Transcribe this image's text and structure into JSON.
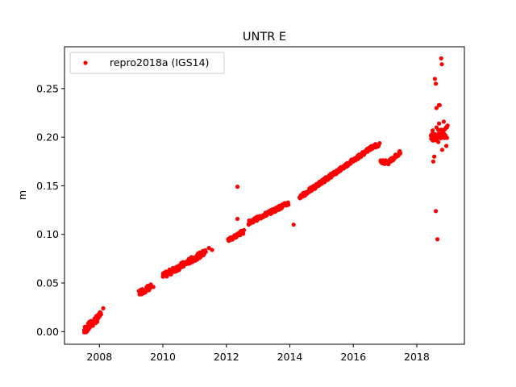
{
  "chart_data": {
    "type": "scatter",
    "title": "UNTR E",
    "xlabel": "",
    "ylabel": "m",
    "xlim": [
      2006.9,
      2019.5
    ],
    "ylim": [
      -0.013,
      0.293
    ],
    "xticks": [
      2008,
      2010,
      2012,
      2014,
      2016,
      2018
    ],
    "yticks": [
      0.0,
      0.05,
      0.1,
      0.15,
      0.2,
      0.25
    ],
    "ytick_labels": [
      "0.00",
      "0.05",
      "0.10",
      "0.15",
      "0.20",
      "0.25"
    ],
    "grid": false,
    "legend_position": "upper-left",
    "colors": {
      "series": "#ff0000",
      "axes": "#000000",
      "background": "#ffffff"
    },
    "series": [
      {
        "name": "repro2018a (IGS14)",
        "color": "#ff0000",
        "segments": [
          {
            "x": [
              2007.52,
              2007.92
            ],
            "y": [
              0.001,
              0.013
            ],
            "n": 40,
            "noise": 0.004
          },
          {
            "x": [
              2007.93,
              2008.05
            ],
            "y": [
              0.013,
              0.018
            ],
            "n": 10,
            "noise": 0.003
          },
          {
            "x": [
              2009.25,
              2009.62
            ],
            "y": [
              0.04,
              0.046
            ],
            "n": 30,
            "noise": 0.003
          },
          {
            "x": [
              2010.0,
              2011.35
            ],
            "y": [
              0.057,
              0.082
            ],
            "n": 110,
            "noise": 0.003
          },
          {
            "x": [
              2012.05,
              2012.55
            ],
            "y": [
              0.094,
              0.103
            ],
            "n": 40,
            "noise": 0.002
          },
          {
            "x": [
              2012.7,
              2013.95
            ],
            "y": [
              0.112,
              0.132
            ],
            "n": 110,
            "noise": 0.002
          },
          {
            "x": [
              2014.3,
              2016.65
            ],
            "y": [
              0.138,
              0.191
            ],
            "n": 220,
            "noise": 0.002
          },
          {
            "x": [
              2016.65,
              2016.82
            ],
            "y": [
              0.191,
              0.192
            ],
            "n": 10,
            "noise": 0.002
          },
          {
            "x": [
              2016.85,
              2017.15
            ],
            "y": [
              0.175,
              0.174
            ],
            "n": 25,
            "noise": 0.002
          },
          {
            "x": [
              2017.15,
              2017.48
            ],
            "y": [
              0.176,
              0.184
            ],
            "n": 30,
            "noise": 0.002
          },
          {
            "x": [
              2018.45,
              2018.95
            ],
            "y": [
              0.2,
              0.205
            ],
            "n": 40,
            "noise": 0.006
          }
        ],
        "points": [
          [
            2008.12,
            0.024
          ],
          [
            2009.7,
            0.046
          ],
          [
            2011.55,
            0.084
          ],
          [
            2011.45,
            0.086
          ],
          [
            2012.35,
            0.149
          ],
          [
            2012.35,
            0.116
          ],
          [
            2014.12,
            0.11
          ],
          [
            2018.57,
            0.26
          ],
          [
            2018.6,
            0.255
          ],
          [
            2018.62,
            0.23
          ],
          [
            2018.7,
            0.233
          ],
          [
            2018.72,
            0.233
          ],
          [
            2018.77,
            0.281
          ],
          [
            2018.79,
            0.275
          ],
          [
            2018.55,
            0.18
          ],
          [
            2018.52,
            0.175
          ],
          [
            2018.8,
            0.187
          ],
          [
            2018.93,
            0.191
          ],
          [
            2018.95,
            0.21
          ],
          [
            2018.97,
            0.212
          ],
          [
            2018.6,
            0.124
          ],
          [
            2018.65,
            0.095
          ],
          [
            2018.7,
            0.214
          ],
          [
            2018.85,
            0.216
          ],
          [
            2018.5,
            0.207
          ],
          [
            2018.68,
            0.195
          ],
          [
            2018.75,
            0.199
          ],
          [
            2018.62,
            0.21
          ],
          [
            2018.45,
            0.202
          ],
          [
            2018.88,
            0.208
          ]
        ]
      }
    ]
  }
}
